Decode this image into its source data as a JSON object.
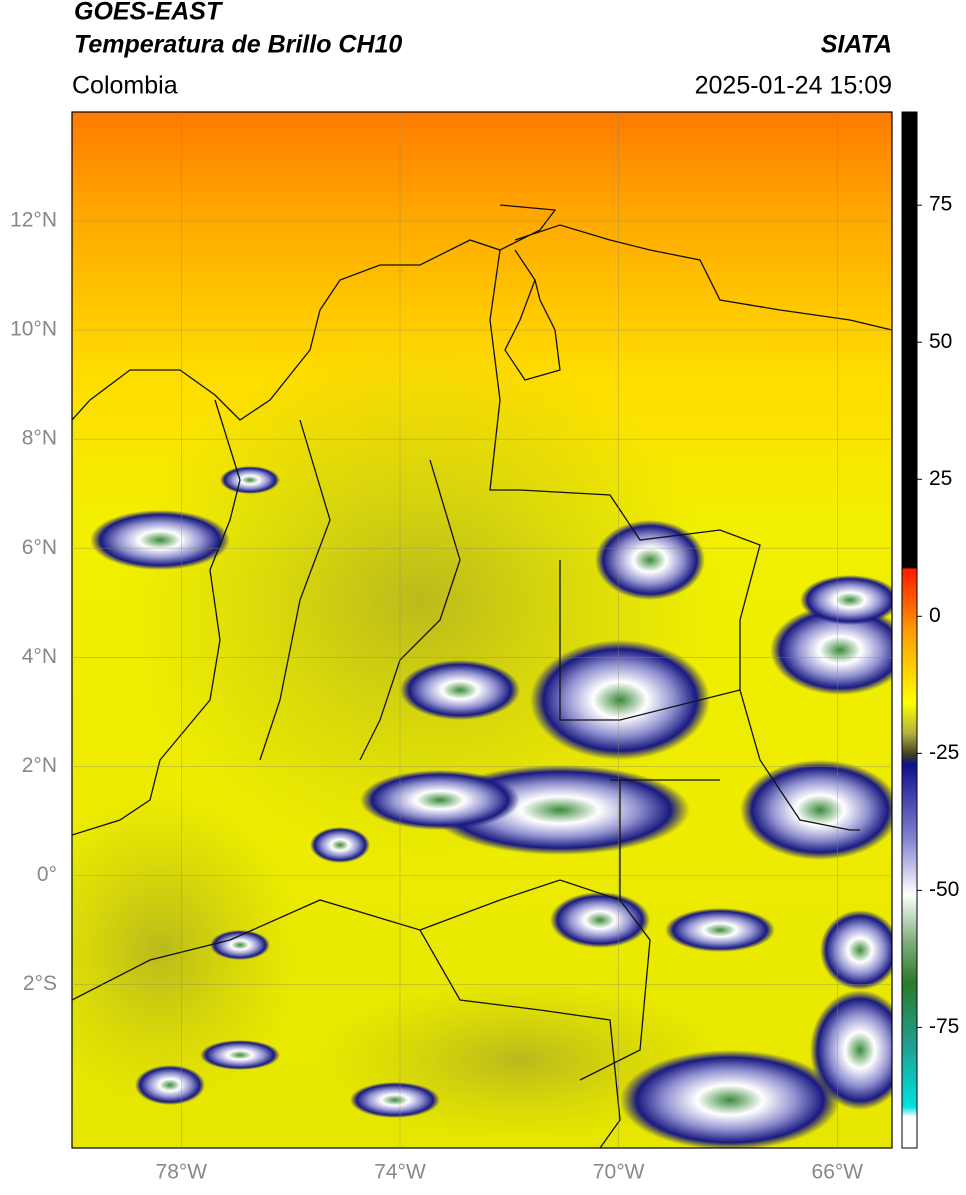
{
  "header": {
    "title": "GOES-EAST",
    "subtitle": "Temperatura de Brillo CH10",
    "source": "SIATA",
    "region": "Colombia",
    "datetime": "2025-01-24 15:09"
  },
  "map": {
    "lon_range": [
      -80,
      -65
    ],
    "lat_range": [
      -5,
      14
    ],
    "lon_ticks": [
      {
        "value": -78,
        "label": "78°W"
      },
      {
        "value": -74,
        "label": "74°W"
      },
      {
        "value": -70,
        "label": "70°W"
      },
      {
        "value": -66,
        "label": "66°W"
      }
    ],
    "lat_ticks": [
      {
        "value": 12,
        "label": "12°N"
      },
      {
        "value": 10,
        "label": "10°N"
      },
      {
        "value": 8,
        "label": "8°N"
      },
      {
        "value": 6,
        "label": "6°N"
      },
      {
        "value": 4,
        "label": "4°N"
      },
      {
        "value": 2,
        "label": "2°N"
      },
      {
        "value": 0,
        "label": "0°"
      },
      {
        "value": -2,
        "label": "2°S"
      }
    ]
  },
  "colorbar": {
    "range": [
      -97,
      92
    ],
    "ticks": [
      75,
      50,
      25,
      0,
      -25,
      -50,
      -75
    ]
  }
}
